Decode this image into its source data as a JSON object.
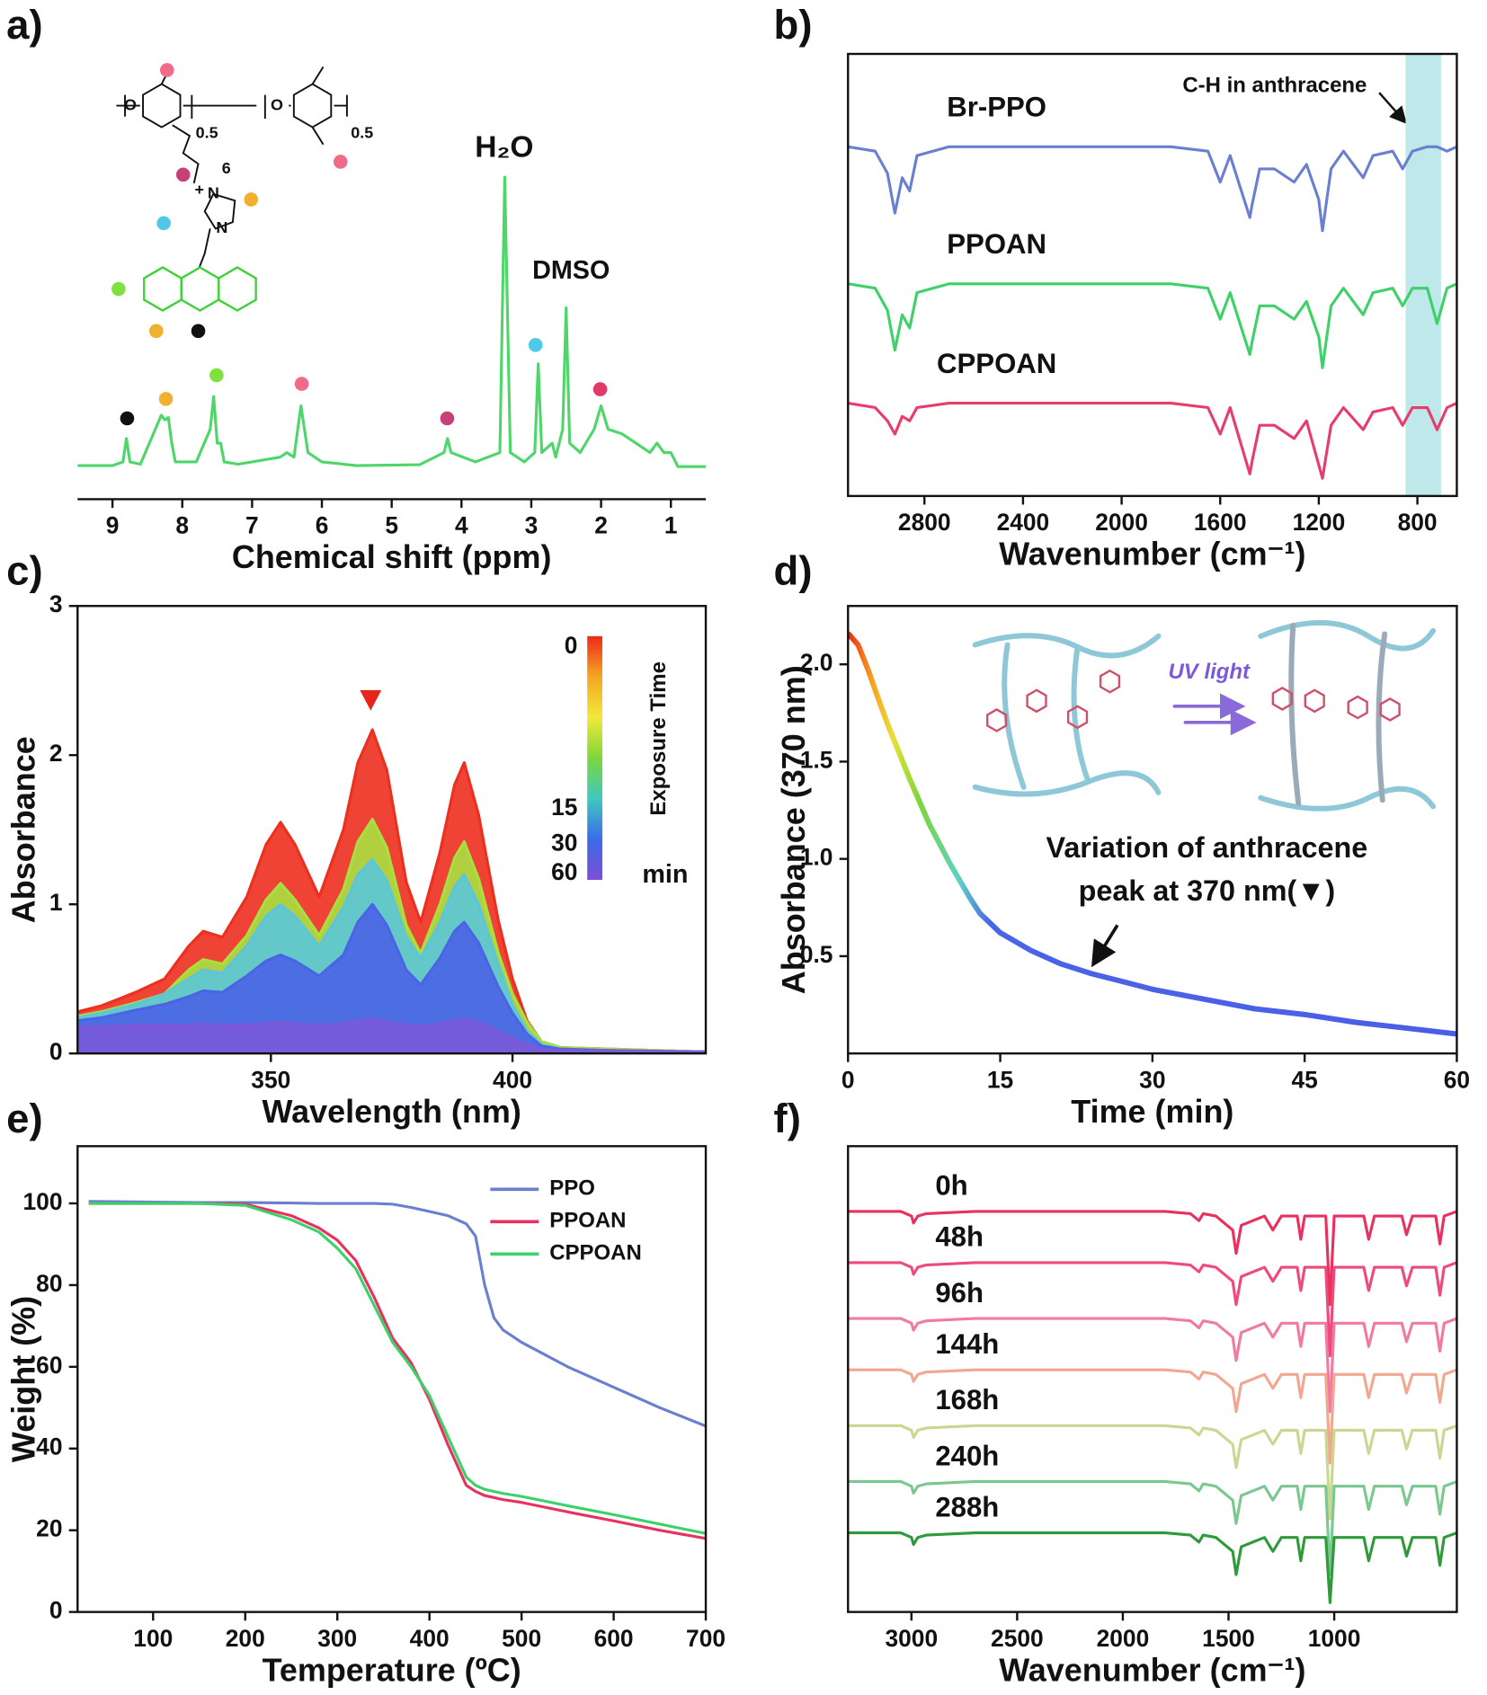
{
  "chart_data": [
    {
      "type": "line",
      "panel_label": "a)",
      "frame": false,
      "xlabel": "Chemical shift (ppm)",
      "xlim": [
        9.5,
        0.5
      ],
      "ylim": [
        0,
        1
      ],
      "xticks": [
        9,
        8,
        7,
        6,
        5,
        4,
        3,
        2,
        1
      ],
      "annotations": [
        "H₂O",
        "DMSO"
      ],
      "structure_labels": [
        "O",
        "O",
        "0.5",
        "0.5",
        "6",
        "+",
        "N",
        "N"
      ],
      "x": [
        9.5,
        9.0,
        8.85,
        8.8,
        8.75,
        8.6,
        8.3,
        8.25,
        8.2,
        8.15,
        8.1,
        7.8,
        7.6,
        7.55,
        7.5,
        7.45,
        7.4,
        7.2,
        6.6,
        6.5,
        6.4,
        6.3,
        6.2,
        6.0,
        5.5,
        4.6,
        4.25,
        4.2,
        4.15,
        3.8,
        3.45,
        3.38,
        3.3,
        3.1,
        2.95,
        2.9,
        2.85,
        2.7,
        2.65,
        2.55,
        2.5,
        2.45,
        2.3,
        2.1,
        2.0,
        1.9,
        1.7,
        1.5,
        1.3,
        1.2,
        1.1,
        1.0,
        0.9,
        0.5
      ],
      "series": [
        {
          "color": "#4fd66a",
          "values": [
            0.072,
            0.072,
            0.08,
            0.13,
            0.08,
            0.075,
            0.18,
            0.17,
            0.175,
            0.12,
            0.08,
            0.08,
            0.15,
            0.22,
            0.12,
            0.12,
            0.08,
            0.075,
            0.09,
            0.1,
            0.09,
            0.2,
            0.1,
            0.08,
            0.072,
            0.074,
            0.1,
            0.13,
            0.1,
            0.08,
            0.1,
            0.69,
            0.1,
            0.08,
            0.1,
            0.29,
            0.1,
            0.12,
            0.09,
            0.15,
            0.41,
            0.12,
            0.1,
            0.15,
            0.2,
            0.15,
            0.14,
            0.12,
            0.1,
            0.12,
            0.1,
            0.1,
            0.07,
            0.07
          ]
        }
      ]
    },
    {
      "type": "line",
      "panel_label": "b)",
      "frame": true,
      "xlabel": "Wavenumber (cm⁻¹)",
      "legend": "inline",
      "xlim": [
        3110,
        640
      ],
      "ylim": [
        0,
        1
      ],
      "xticks": [
        2800,
        2400,
        2000,
        1600,
        1200,
        800
      ],
      "highlight": [
        848,
        704
      ],
      "highlight_color": "#bfe8ea",
      "annotations": [
        "C-H in anthracene"
      ],
      "x": [
        3110,
        3000,
        2950,
        2920,
        2890,
        2860,
        2830,
        2700,
        1800,
        1650,
        1600,
        1560,
        1480,
        1470,
        1440,
        1380,
        1300,
        1250,
        1200,
        1185,
        1150,
        1100,
        1020,
        980,
        900,
        860,
        820,
        760,
        720,
        680,
        640
      ],
      "series": [
        {
          "name": "Br-PPO",
          "color": "#6a7fd0",
          "values": [
            0.79,
            0.78,
            0.73,
            0.64,
            0.72,
            0.69,
            0.77,
            0.79,
            0.79,
            0.78,
            0.71,
            0.77,
            0.63,
            0.66,
            0.74,
            0.74,
            0.71,
            0.75,
            0.67,
            0.6,
            0.74,
            0.78,
            0.72,
            0.77,
            0.78,
            0.74,
            0.78,
            0.79,
            0.79,
            0.78,
            0.79
          ]
        },
        {
          "name": "PPOAN",
          "color": "#3ed16a",
          "values": [
            0.48,
            0.47,
            0.42,
            0.33,
            0.41,
            0.38,
            0.46,
            0.48,
            0.48,
            0.47,
            0.4,
            0.46,
            0.32,
            0.35,
            0.43,
            0.43,
            0.4,
            0.44,
            0.36,
            0.29,
            0.43,
            0.47,
            0.41,
            0.46,
            0.47,
            0.43,
            0.47,
            0.47,
            0.39,
            0.47,
            0.48
          ]
        },
        {
          "name": "CPPOAN",
          "color": "#e83c6b",
          "values": [
            0.21,
            0.2,
            0.17,
            0.14,
            0.18,
            0.17,
            0.2,
            0.21,
            0.21,
            0.2,
            0.14,
            0.2,
            0.05,
            0.08,
            0.16,
            0.16,
            0.13,
            0.17,
            0.07,
            0.04,
            0.16,
            0.2,
            0.15,
            0.19,
            0.2,
            0.16,
            0.2,
            0.2,
            0.15,
            0.2,
            0.21
          ]
        }
      ]
    },
    {
      "type": "area",
      "panel_label": "c)",
      "frame": true,
      "xlabel": "Wavelength (nm)",
      "ylabel": "Absorbance",
      "xlim": [
        310,
        440
      ],
      "ylim": [
        0,
        3
      ],
      "xticks": [
        350,
        400
      ],
      "yticks": [
        0,
        1,
        2,
        3
      ],
      "colorbar": {
        "title": "Exposure Time",
        "unit": "min",
        "ticks": [
          0,
          15,
          30,
          60
        ],
        "colors": [
          "#ee2a1a",
          "#f5a623",
          "#f2e83a",
          "#7ed63a",
          "#3fc9c0",
          "#3b6be8",
          "#7b4fd6"
        ]
      },
      "x": [
        310,
        315,
        322,
        328,
        333,
        336,
        340,
        345,
        349,
        352,
        355,
        360,
        365,
        368,
        371,
        374,
        378,
        381,
        385,
        388,
        390,
        393,
        397,
        400,
        403,
        406,
        410,
        420,
        440
      ],
      "series": [
        {
          "color": "#ec2f1f",
          "values": [
            0.28,
            0.32,
            0.41,
            0.5,
            0.72,
            0.82,
            0.78,
            1.05,
            1.4,
            1.55,
            1.4,
            1.05,
            1.5,
            1.95,
            2.17,
            1.9,
            1.15,
            0.88,
            1.35,
            1.8,
            1.95,
            1.6,
            0.9,
            0.5,
            0.22,
            0.08,
            0.04,
            0.03,
            0.01
          ]
        },
        {
          "color": "#a8e040",
          "values": [
            0.25,
            0.28,
            0.34,
            0.4,
            0.56,
            0.63,
            0.6,
            0.79,
            1.03,
            1.14,
            1.03,
            0.79,
            1.1,
            1.42,
            1.57,
            1.38,
            0.86,
            0.67,
            1.0,
            1.31,
            1.42,
            1.17,
            0.68,
            0.4,
            0.21,
            0.08,
            0.04,
            0.03,
            0.01
          ]
        },
        {
          "color": "#5cc6d8",
          "values": [
            0.24,
            0.27,
            0.33,
            0.4,
            0.5,
            0.56,
            0.54,
            0.72,
            0.92,
            1.0,
            0.92,
            0.72,
            0.98,
            1.2,
            1.3,
            1.16,
            0.78,
            0.64,
            0.88,
            1.12,
            1.2,
            1.0,
            0.6,
            0.33,
            0.15,
            0.06,
            0.03,
            0.02,
            0.01
          ]
        },
        {
          "color": "#4a64e6",
          "values": [
            0.22,
            0.24,
            0.29,
            0.33,
            0.38,
            0.42,
            0.41,
            0.52,
            0.62,
            0.66,
            0.62,
            0.52,
            0.66,
            0.88,
            1.0,
            0.86,
            0.56,
            0.46,
            0.64,
            0.82,
            0.88,
            0.74,
            0.45,
            0.27,
            0.13,
            0.05,
            0.03,
            0.02,
            0.01
          ]
        },
        {
          "color": "#7a5ad8",
          "values": [
            0.18,
            0.18,
            0.19,
            0.19,
            0.19,
            0.2,
            0.19,
            0.19,
            0.2,
            0.21,
            0.2,
            0.19,
            0.2,
            0.22,
            0.23,
            0.21,
            0.19,
            0.18,
            0.2,
            0.22,
            0.23,
            0.21,
            0.15,
            0.1,
            0.06,
            0.03,
            0.02,
            0.02,
            0.01
          ]
        }
      ]
    },
    {
      "type": "line",
      "panel_label": "d)",
      "frame": true,
      "xlabel": "Time (min)",
      "ylabel": "Absorbance (370 nm)",
      "xlim": [
        0,
        60
      ],
      "ylim": [
        0,
        2.3
      ],
      "xticks": [
        0,
        15,
        30,
        45,
        60
      ],
      "yticks": [
        0.5,
        {
          "value": 1,
          "label": "1.0"
        },
        1.5,
        {
          "value": 2,
          "label": "2.0"
        }
      ],
      "annotations": [
        "UV light",
        "Variation of anthracene",
        "peak at 370 nm(▼)"
      ],
      "gradient": [
        {
          "x": 0,
          "color": "#ee2a1a"
        },
        {
          "x": 2.5,
          "color": "#f5a623"
        },
        {
          "x": 4.5,
          "color": "#e8e03a"
        },
        {
          "x": 7,
          "color": "#7ed63a"
        },
        {
          "x": 11,
          "color": "#5fd0c8"
        },
        {
          "x": 14,
          "color": "#4a64e6"
        },
        {
          "x": 60,
          "color": "#4a5ee6"
        }
      ],
      "x": [
        0,
        1,
        2,
        3,
        4,
        5,
        6,
        8,
        10,
        12,
        13,
        15,
        18,
        21,
        24,
        27,
        30,
        35,
        40,
        45,
        50,
        55,
        60
      ],
      "series": [
        {
          "values": [
            2.16,
            2.1,
            1.97,
            1.82,
            1.68,
            1.55,
            1.42,
            1.18,
            0.98,
            0.8,
            0.72,
            0.62,
            0.53,
            0.46,
            0.41,
            0.37,
            0.33,
            0.28,
            0.23,
            0.2,
            0.16,
            0.13,
            0.1
          ]
        }
      ]
    },
    {
      "type": "line",
      "panel_label": "e)",
      "frame": true,
      "xlabel": "Temperature (ºC)",
      "ylabel": "Weight (%)",
      "legend": "upper right",
      "xlim": [
        18,
        700
      ],
      "ylim": [
        0,
        114
      ],
      "xticks": [
        100,
        200,
        300,
        400,
        500,
        600,
        700
      ],
      "yticks": [
        0,
        20,
        40,
        60,
        80,
        100
      ],
      "x": [
        30,
        100,
        150,
        200,
        250,
        280,
        300,
        320,
        340,
        360,
        380,
        400,
        420,
        440,
        450,
        460,
        470,
        480,
        500,
        550,
        600,
        650,
        700
      ],
      "series": [
        {
          "name": "PPO",
          "color": "#6a7fd0",
          "values": [
            100.5,
            100.3,
            100.2,
            100.2,
            100.1,
            100,
            100,
            100,
            100,
            99.8,
            99,
            98,
            97,
            95,
            92,
            80,
            72,
            69,
            66,
            60,
            55,
            50,
            45.5
          ]
        },
        {
          "name": "PPOAN",
          "color": "#e8315e",
          "values": [
            100,
            100,
            100,
            99.8,
            97,
            94,
            91,
            86,
            77,
            67,
            61,
            52,
            41,
            31,
            29.5,
            28.5,
            28,
            27.5,
            26.8,
            24.5,
            22.3,
            20,
            18
          ]
        },
        {
          "name": "CPPOAN",
          "color": "#3ed16a",
          "values": [
            100,
            100,
            100,
            99.5,
            96,
            93,
            89,
            84,
            75,
            66,
            60,
            53,
            43,
            33,
            31,
            30,
            29.5,
            29,
            28.3,
            26,
            23.8,
            21.5,
            19.2
          ]
        }
      ]
    },
    {
      "type": "line",
      "panel_label": "f)",
      "frame": true,
      "xlabel": "Wavenumber (cm⁻¹)",
      "legend": "inline",
      "xlim": [
        3300,
        420
      ],
      "ylim": [
        0,
        1
      ],
      "xticks": [
        3000,
        2500,
        2000,
        1500,
        1000
      ],
      "x": [
        3300,
        3050,
        3000,
        2990,
        2970,
        2930,
        2700,
        1800,
        1680,
        1640,
        1620,
        1560,
        1480,
        1464,
        1440,
        1330,
        1290,
        1250,
        1175,
        1158,
        1140,
        1040,
        1020,
        1000,
        860,
        837,
        810,
        680,
        658,
        630,
        520,
        500,
        480,
        420
      ],
      "series": [
        {
          "name": "0h",
          "color": "#e8315e",
          "values": [
            0.86,
            0.86,
            0.85,
            0.835,
            0.85,
            0.855,
            0.86,
            0.86,
            0.855,
            0.84,
            0.855,
            0.85,
            0.82,
            0.77,
            0.83,
            0.85,
            0.82,
            0.85,
            0.85,
            0.8,
            0.85,
            0.85,
            0.66,
            0.85,
            0.85,
            0.8,
            0.85,
            0.85,
            0.81,
            0.85,
            0.85,
            0.79,
            0.85,
            0.86
          ]
        },
        {
          "name": "48h",
          "color": "#ee4a7a",
          "values": [
            0.75,
            0.75,
            0.74,
            0.725,
            0.74,
            0.745,
            0.75,
            0.75,
            0.745,
            0.73,
            0.745,
            0.74,
            0.71,
            0.66,
            0.72,
            0.74,
            0.71,
            0.74,
            0.74,
            0.69,
            0.74,
            0.74,
            0.55,
            0.74,
            0.74,
            0.69,
            0.74,
            0.74,
            0.7,
            0.74,
            0.74,
            0.68,
            0.74,
            0.75
          ]
        },
        {
          "name": "96h",
          "color": "#f07aa0",
          "values": [
            0.63,
            0.63,
            0.62,
            0.605,
            0.62,
            0.625,
            0.63,
            0.63,
            0.625,
            0.61,
            0.625,
            0.62,
            0.59,
            0.54,
            0.6,
            0.62,
            0.59,
            0.62,
            0.62,
            0.57,
            0.62,
            0.62,
            0.43,
            0.62,
            0.62,
            0.57,
            0.62,
            0.62,
            0.58,
            0.62,
            0.62,
            0.56,
            0.62,
            0.63
          ]
        },
        {
          "name": "144h",
          "color": "#f0a890",
          "values": [
            0.52,
            0.52,
            0.51,
            0.495,
            0.51,
            0.515,
            0.52,
            0.52,
            0.515,
            0.5,
            0.515,
            0.51,
            0.48,
            0.43,
            0.49,
            0.51,
            0.48,
            0.51,
            0.51,
            0.46,
            0.51,
            0.51,
            0.32,
            0.51,
            0.51,
            0.46,
            0.51,
            0.51,
            0.47,
            0.51,
            0.51,
            0.45,
            0.51,
            0.52
          ]
        },
        {
          "name": "168h",
          "color": "#c8d890",
          "values": [
            0.4,
            0.4,
            0.39,
            0.375,
            0.39,
            0.395,
            0.4,
            0.4,
            0.395,
            0.38,
            0.395,
            0.39,
            0.36,
            0.31,
            0.37,
            0.39,
            0.36,
            0.39,
            0.39,
            0.34,
            0.39,
            0.39,
            0.2,
            0.39,
            0.39,
            0.34,
            0.39,
            0.39,
            0.35,
            0.39,
            0.39,
            0.33,
            0.39,
            0.4
          ]
        },
        {
          "name": "240h",
          "color": "#7ac890",
          "values": [
            0.28,
            0.28,
            0.27,
            0.255,
            0.27,
            0.275,
            0.28,
            0.28,
            0.275,
            0.26,
            0.275,
            0.27,
            0.24,
            0.19,
            0.25,
            0.27,
            0.24,
            0.27,
            0.27,
            0.22,
            0.27,
            0.27,
            0.08,
            0.27,
            0.27,
            0.22,
            0.27,
            0.27,
            0.23,
            0.27,
            0.27,
            0.21,
            0.27,
            0.28
          ]
        },
        {
          "name": "288h",
          "color": "#2e9a3a",
          "values": [
            0.17,
            0.17,
            0.16,
            0.145,
            0.16,
            0.165,
            0.17,
            0.17,
            0.165,
            0.15,
            0.165,
            0.16,
            0.13,
            0.08,
            0.14,
            0.16,
            0.13,
            0.16,
            0.16,
            0.11,
            0.16,
            0.16,
            0.02,
            0.16,
            0.16,
            0.11,
            0.16,
            0.16,
            0.12,
            0.16,
            0.16,
            0.1,
            0.16,
            0.17
          ]
        }
      ]
    }
  ]
}
